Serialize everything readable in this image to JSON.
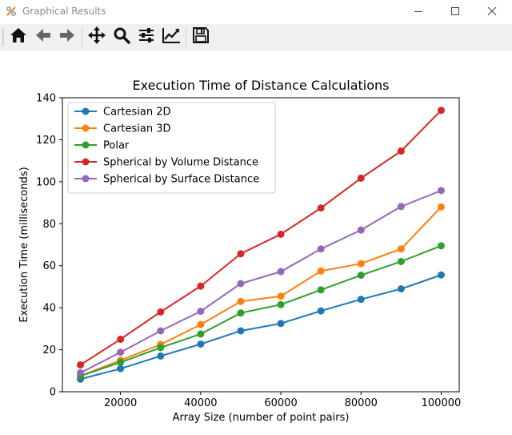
{
  "window": {
    "title": "Graphical Results",
    "minimize_icon": "minimize-icon",
    "maximize_icon": "maximize-icon",
    "close_icon": "close-icon"
  },
  "toolbar": {
    "buttons": [
      {
        "icon": "home-icon"
      },
      {
        "icon": "back-arrow-icon"
      },
      {
        "icon": "forward-arrow-icon"
      },
      {
        "icon": "pan-icon"
      },
      {
        "icon": "zoom-icon"
      },
      {
        "icon": "configure-subplots-icon"
      },
      {
        "icon": "edit-axis-icon"
      },
      {
        "icon": "save-icon"
      }
    ]
  },
  "chart_data": {
    "type": "line",
    "title": "Execution Time of Distance Calculations",
    "xlabel": "Array Size (number of point pairs)",
    "ylabel": "Execution Time (milliseconds)",
    "xlim": [
      5500,
      104500
    ],
    "ylim": [
      0,
      140
    ],
    "xticks": [
      20000,
      40000,
      60000,
      80000,
      100000
    ],
    "yticks": [
      0,
      20,
      40,
      60,
      80,
      100,
      120,
      140
    ],
    "legend_position": "top-left",
    "grid": false,
    "x": [
      10000,
      20000,
      30000,
      40000,
      50000,
      60000,
      70000,
      80000,
      90000,
      100000
    ],
    "series": [
      {
        "name": "Cartesian 2D",
        "color": "#1f77b4",
        "values": [
          6,
          11,
          17,
          22.7,
          29,
          32.5,
          38.5,
          44,
          49,
          55.6
        ]
      },
      {
        "name": "Cartesian 3D",
        "color": "#ff7f0e",
        "values": [
          7.5,
          15,
          22.5,
          32,
          43,
          45.5,
          57.5,
          61,
          68,
          88
        ]
      },
      {
        "name": "Polar",
        "color": "#2ca02c",
        "values": [
          7.5,
          14,
          21,
          27.5,
          37.5,
          41.5,
          48.5,
          55.5,
          62,
          69.5
        ]
      },
      {
        "name": "Spherical by Volume Distance",
        "color": "#d62728",
        "values": [
          12.8,
          25,
          38,
          50.3,
          65.7,
          75,
          87.5,
          101.7,
          114.6,
          134
        ]
      },
      {
        "name": "Spherical by Surface Distance",
        "color": "#9467bd",
        "values": [
          9,
          18.8,
          29,
          38.3,
          51.5,
          57.2,
          68,
          77,
          88.2,
          95.8
        ]
      }
    ]
  }
}
